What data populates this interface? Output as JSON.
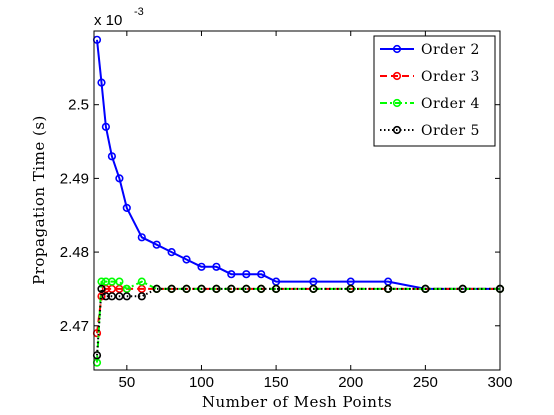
{
  "chart_data": {
    "type": "line",
    "title": "",
    "xlabel": "Number of Mesh Points",
    "ylabel": "Propagation Time (s)",
    "y_multiplier_base": "x 10",
    "y_multiplier_exp": "-3",
    "xlim": [
      28,
      300
    ],
    "ylim": [
      2.464,
      2.51
    ],
    "x_ticks": [
      50,
      100,
      150,
      200,
      250,
      300
    ],
    "x_tick_labels": [
      "50",
      "100",
      "150",
      "200",
      "250",
      "300"
    ],
    "y_ticks": [
      2.47,
      2.48,
      2.49,
      2.5
    ],
    "y_tick_labels": [
      "2.47",
      "2.48",
      "2.49",
      "2.5"
    ],
    "grid": false,
    "legend_position": "top-right",
    "series": [
      {
        "name": "Order 2",
        "color": "#0000ff",
        "dash": "solid",
        "x": [
          30,
          33,
          36,
          40,
          45,
          50,
          60,
          70,
          80,
          90,
          100,
          110,
          120,
          130,
          140,
          150,
          175,
          200,
          225,
          250,
          275,
          300
        ],
        "y": [
          2.5088,
          2.503,
          2.497,
          2.493,
          2.49,
          2.486,
          2.482,
          2.481,
          2.48,
          2.479,
          2.478,
          2.478,
          2.477,
          2.477,
          2.477,
          2.476,
          2.476,
          2.476,
          2.476,
          2.475,
          2.475,
          2.475
        ]
      },
      {
        "name": "Order 3",
        "color": "#ff0000",
        "dash": "dashed",
        "x": [
          30,
          33,
          36,
          40,
          45,
          50,
          60,
          70,
          80,
          90,
          100,
          110,
          120,
          130,
          140,
          150,
          175,
          200,
          225,
          250,
          275,
          300
        ],
        "y": [
          2.469,
          2.474,
          2.475,
          2.475,
          2.475,
          2.475,
          2.475,
          2.475,
          2.475,
          2.475,
          2.475,
          2.475,
          2.475,
          2.475,
          2.475,
          2.475,
          2.475,
          2.475,
          2.475,
          2.475,
          2.475,
          2.475
        ]
      },
      {
        "name": "Order 4",
        "color": "#00ff00",
        "dash": "dashdot",
        "x": [
          30,
          33,
          36,
          40,
          45,
          50,
          60,
          70,
          80,
          90,
          100,
          110,
          120,
          130,
          140,
          150,
          175,
          200,
          225,
          250,
          275,
          300
        ],
        "y": [
          2.465,
          2.476,
          2.476,
          2.476,
          2.476,
          2.475,
          2.476,
          2.475,
          2.475,
          2.475,
          2.475,
          2.475,
          2.475,
          2.475,
          2.475,
          2.475,
          2.475,
          2.475,
          2.475,
          2.475,
          2.475,
          2.475
        ]
      },
      {
        "name": "Order 5",
        "color": "#000000",
        "dash": "dotted",
        "x": [
          30,
          33,
          36,
          40,
          45,
          50,
          60,
          70,
          80,
          90,
          100,
          110,
          120,
          130,
          140,
          150,
          175,
          200,
          225,
          250,
          275,
          300
        ],
        "y": [
          2.466,
          2.475,
          2.474,
          2.474,
          2.474,
          2.474,
          2.474,
          2.475,
          2.475,
          2.475,
          2.475,
          2.475,
          2.475,
          2.475,
          2.475,
          2.475,
          2.475,
          2.475,
          2.475,
          2.475,
          2.475,
          2.475
        ]
      }
    ]
  }
}
